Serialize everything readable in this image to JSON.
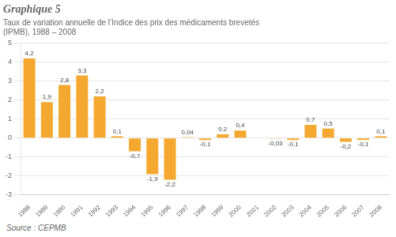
{
  "chart_data": {
    "type": "bar",
    "title": "Graphique 5",
    "subtitle": "Taux de variation annuelle de l’Indice des prix des médicaments brevetés\n(IPMB), 1988 – 2008",
    "annotations": [
      "Source : CEPMB"
    ],
    "categories": [
      "1988",
      "1989",
      "1990",
      "1991",
      "1992",
      "1993",
      "1994",
      "1995",
      "1996",
      "1997",
      "1998",
      "1999",
      "2000",
      "2001",
      "2002",
      "2003",
      "2004",
      "2005",
      "2006",
      "2007",
      "2008"
    ],
    "values": [
      4.2,
      1.9,
      2.8,
      3.3,
      2.2,
      0.1,
      -0.7,
      -1.9,
      -2.2,
      0.04,
      -0.1,
      0.2,
      0.4,
      0.0,
      -0.03,
      -0.1,
      0.7,
      0.5,
      -0.2,
      -0.1,
      0.1
    ],
    "value_labels": [
      "4,2",
      "1,9",
      "2,8",
      "3,3",
      "2,2",
      "0,1",
      "-0,7",
      "-1,9",
      "-2,2",
      "0,04",
      "-0,1",
      "0,2",
      "0,4",
      null,
      "-0,03",
      "-0,1",
      "0,7",
      "0,5",
      "-0,2",
      "-0,1",
      "0,1"
    ],
    "data_labels": true,
    "color": "#F5A830",
    "ylim": [
      -3,
      5
    ],
    "yticks": [
      -3,
      -2,
      -1,
      0,
      1,
      2,
      3,
      4,
      5
    ],
    "grid": true
  }
}
